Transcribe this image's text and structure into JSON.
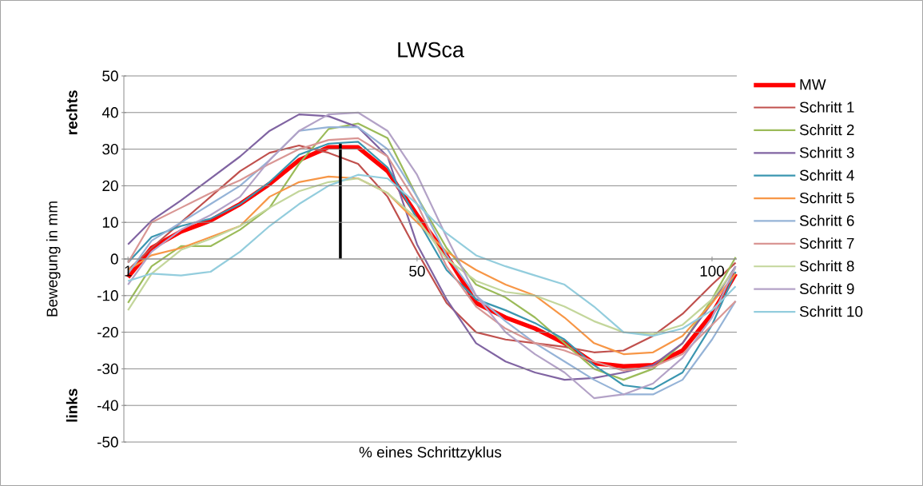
{
  "chart_data": {
    "type": "line",
    "title": "LWSca",
    "xlabel": "% eines Schrittzyklus",
    "ylabel": "Bewegung in mm",
    "annotations": [
      "rechts",
      "links"
    ],
    "x": [
      1,
      5,
      10,
      15,
      20,
      25,
      30,
      35,
      40,
      45,
      50,
      55,
      60,
      65,
      70,
      75,
      80,
      85,
      90,
      95,
      100,
      104
    ],
    "xlim": [
      0.3,
      104.2
    ],
    "xticks": [
      1,
      50,
      100
    ],
    "ylim": [
      -50,
      50
    ],
    "yticks": [
      -50,
      -40,
      -30,
      -20,
      -10,
      0,
      10,
      20,
      30,
      40,
      50
    ],
    "grid": "y",
    "legend": "right",
    "marker": "none",
    "line_style": "solid",
    "series": [
      {
        "name": "MW",
        "color": "#ff0000",
        "values": [
          -5,
          3,
          7.5,
          10.5,
          15,
          20.5,
          27,
          30.5,
          30.5,
          24,
          12,
          1,
          -12,
          -16,
          -19,
          -23,
          -28.5,
          -29.3,
          -29,
          -25,
          -15,
          -4
        ]
      },
      {
        "name": "Schritt 1",
        "color": "#c0504d",
        "values": [
          -3,
          3,
          10,
          17,
          24,
          29,
          31,
          29,
          26,
          17,
          2,
          -12,
          -20,
          -22,
          -23,
          -24,
          -25.5,
          -25,
          -21,
          -15,
          -7,
          -1
        ]
      },
      {
        "name": "Schritt 2",
        "color": "#9bbb59",
        "values": [
          -12,
          -2,
          3.5,
          3.5,
          8,
          14,
          26,
          35.5,
          37,
          33,
          17,
          3,
          -7,
          -10.5,
          -16,
          -23,
          -30,
          -33,
          -30,
          -23,
          -11,
          0.5
        ]
      },
      {
        "name": "Schritt 3",
        "color": "#8064a2",
        "values": [
          4,
          10.5,
          16,
          22,
          28,
          35,
          39.5,
          39,
          36,
          28,
          4,
          -11,
          -23,
          -28,
          -31,
          -33,
          -32.5,
          -31,
          -29,
          -23,
          -12,
          -2
        ]
      },
      {
        "name": "Schritt 4",
        "color": "#3a96b0",
        "values": [
          -1,
          6,
          9,
          11,
          15,
          21,
          28.5,
          31.5,
          32,
          25,
          11,
          -3,
          -11,
          -14,
          -17.5,
          -22,
          -29,
          -34.5,
          -35.5,
          -31,
          -18,
          -3.5
        ]
      },
      {
        "name": "Schritt 5",
        "color": "#f79646",
        "values": [
          -3,
          1,
          3,
          6,
          9,
          17,
          21,
          22.5,
          22,
          18,
          10,
          2,
          -3,
          -7,
          -10,
          -16,
          -23,
          -26,
          -25.5,
          -21,
          -12,
          -4
        ]
      },
      {
        "name": "Schritt 6",
        "color": "#95b3d7",
        "values": [
          -4,
          5,
          10,
          15,
          20,
          27,
          35,
          36,
          36,
          30,
          17,
          1,
          -10,
          -17,
          -23,
          -28,
          -33,
          -37,
          -37,
          -33,
          -22,
          -11.5
        ]
      },
      {
        "name": "Schritt 7",
        "color": "#d99694",
        "values": [
          -1,
          10,
          14,
          18,
          21.5,
          26,
          30,
          32.5,
          33,
          28,
          15,
          -2,
          -13,
          -19,
          -23,
          -25,
          -28,
          -30.5,
          -29.5,
          -26,
          -18,
          -11.5
        ]
      },
      {
        "name": "Schritt 8",
        "color": "#c3d69b",
        "values": [
          -14,
          -4,
          2.5,
          5.5,
          9,
          14,
          18.5,
          21,
          22,
          18,
          11,
          0,
          -6,
          -9,
          -10,
          -13,
          -17,
          -20,
          -20.5,
          -18,
          -11,
          -2.5
        ]
      },
      {
        "name": "Schritt 9",
        "color": "#b3a2c7",
        "values": [
          -7,
          2,
          8,
          12,
          17,
          27,
          35,
          39.5,
          40,
          35,
          23,
          6,
          -10,
          -20,
          -26,
          -31,
          -38,
          -37,
          -34,
          -27,
          -16,
          -2
        ]
      },
      {
        "name": "Schritt 10",
        "color": "#93cddd",
        "values": [
          -6,
          -4,
          -4.5,
          -3.5,
          2,
          9,
          15,
          20,
          23,
          22,
          15,
          7,
          1,
          -2,
          -4.5,
          -7,
          -13,
          -20,
          -21,
          -19,
          -14,
          -7.5
        ]
      },
      {
        "color": "#000000",
        "x": [
          37,
          37
        ],
        "values": [
          0,
          31.5
        ]
      }
    ]
  }
}
